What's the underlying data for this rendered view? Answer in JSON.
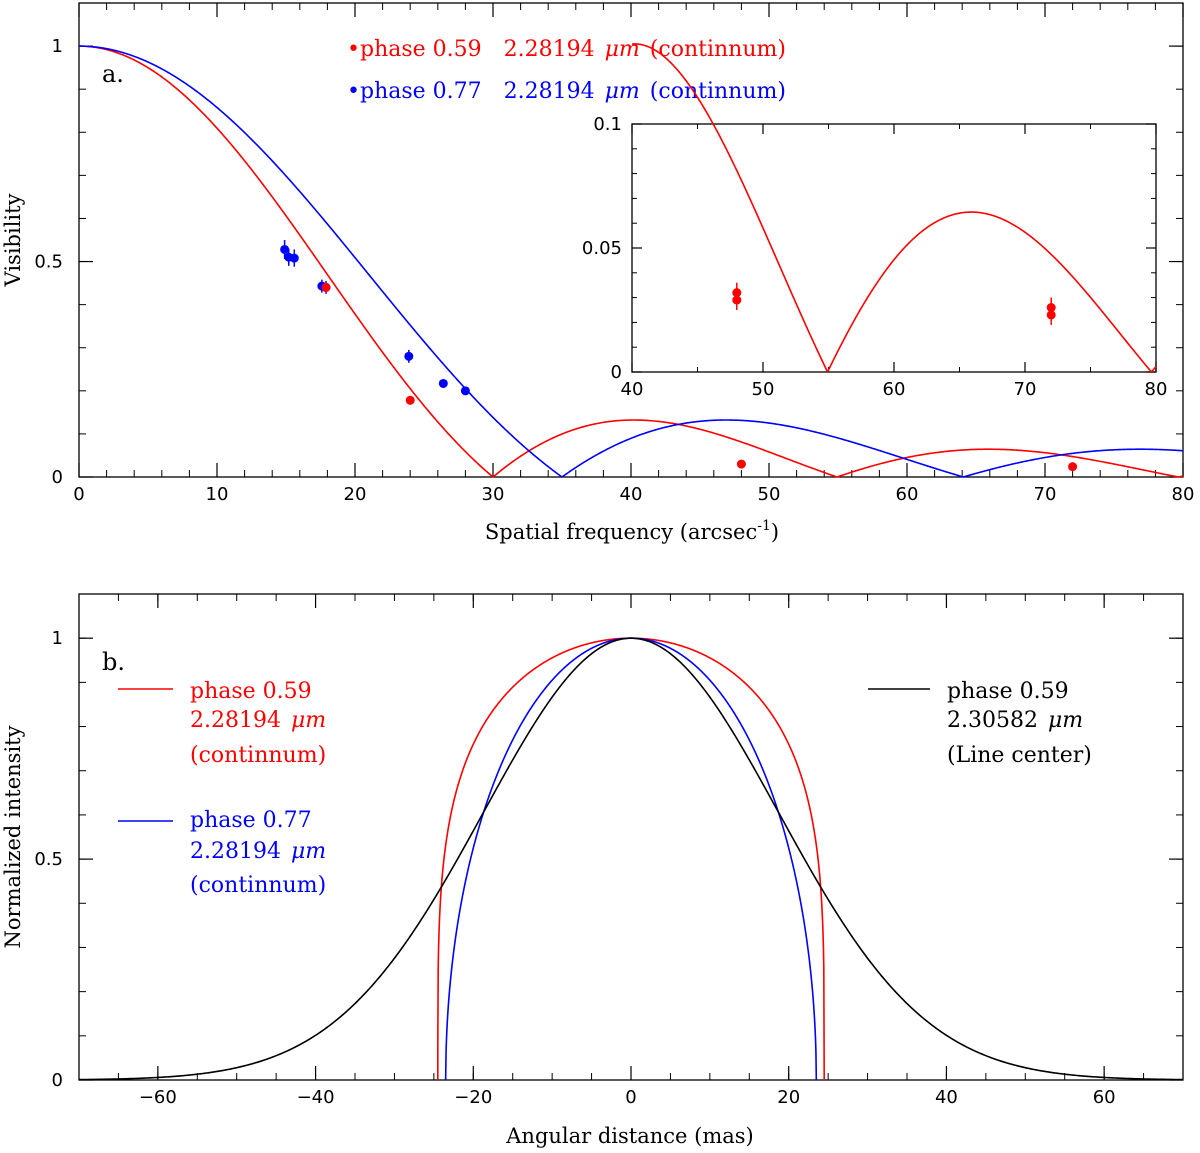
{
  "chart_data": [
    {
      "id": "a",
      "type": "line",
      "panel_label": "a.",
      "xlabel": "Spatial frequency (arcsec",
      "xlabel_sup": "-1",
      "xlabel_close": ")",
      "ylabel": "Visibility",
      "xlim": [
        0,
        80
      ],
      "ylim": [
        0,
        1.1
      ],
      "xticks": [
        0,
        10,
        20,
        30,
        40,
        50,
        60,
        70,
        80
      ],
      "xtick_labels": [
        "0",
        "10",
        "20",
        "30",
        "40",
        "50",
        "60",
        "70",
        "80"
      ],
      "yticks": [
        0,
        0.5,
        1
      ],
      "ytick_labels": [
        "0",
        "0.5",
        "1"
      ],
      "legend": [
        {
          "bullet": "•",
          "phase": "phase 0.59",
          "wavelength": "2.28194",
          "unit": "μm",
          "note": "(continnum)",
          "color": "#ff0000"
        },
        {
          "bullet": "•",
          "phase": "phase 0.77",
          "wavelength": "2.28194",
          "unit": "μm",
          "note": "(continnum)",
          "color": "#0000ff"
        }
      ],
      "series": [
        {
          "name": "phase 0.59 2.28194 μm (continnum)",
          "color": "#ff0000",
          "model": "uniform disk visibility |2J1(πθu)/(πθu)|",
          "first_null": 30
        },
        {
          "name": "phase 0.77 2.28194 μm (continnum)",
          "color": "#0000ff",
          "model": "uniform disk visibility |2J1(πθu)/(πθu)|",
          "first_null": 35
        }
      ],
      "points": [
        {
          "series": "phase 0.77",
          "color": "#0000ff",
          "x": 14.9,
          "y": 0.528,
          "err": 0.022
        },
        {
          "series": "phase 0.77",
          "color": "#0000ff",
          "x": 15.2,
          "y": 0.51,
          "err": 0.02
        },
        {
          "series": "phase 0.77",
          "color": "#0000ff",
          "x": 15.6,
          "y": 0.508,
          "err": 0.02
        },
        {
          "series": "phase 0.77",
          "color": "#0000ff",
          "x": 17.6,
          "y": 0.443,
          "err": 0.015
        },
        {
          "series": "phase 0.77",
          "color": "#0000ff",
          "x": 17.9,
          "y": 0.44,
          "err": 0.015
        },
        {
          "series": "phase 0.77",
          "color": "#0000ff",
          "x": 23.9,
          "y": 0.28,
          "err": 0.015
        },
        {
          "series": "phase 0.77",
          "color": "#0000ff",
          "x": 26.4,
          "y": 0.217,
          "err": 0.01
        },
        {
          "series": "phase 0.77",
          "color": "#0000ff",
          "x": 28.0,
          "y": 0.2,
          "err": 0.006
        },
        {
          "series": "phase 0.59",
          "color": "#ff0000",
          "x": 17.9,
          "y": 0.44,
          "err": 0.012
        },
        {
          "series": "phase 0.59",
          "color": "#ff0000",
          "x": 24.0,
          "y": 0.178,
          "err": 0.01
        },
        {
          "series": "phase 0.59",
          "color": "#ff0000",
          "x": 48.0,
          "y": 0.03,
          "err": 0.004
        },
        {
          "series": "phase 0.59",
          "color": "#ff0000",
          "x": 72.0,
          "y": 0.024,
          "err": 0.004
        }
      ]
    },
    {
      "id": "a-inset",
      "type": "line",
      "xlim": [
        40,
        80
      ],
      "ylim": [
        0,
        0.1
      ],
      "xticks": [
        40,
        50,
        60,
        70,
        80
      ],
      "xtick_labels": [
        "40",
        "50",
        "60",
        "70",
        "80"
      ],
      "yticks": [
        0,
        0.05,
        0.1
      ],
      "ytick_labels": [
        "0",
        "0.05",
        "0.1"
      ],
      "series": [
        {
          "name": "phase 0.59 2.28194 μm (continnum)",
          "color": "#ff0000"
        }
      ],
      "points": [
        {
          "color": "#ff0000",
          "x": 48.0,
          "y": 0.032,
          "err": 0.004
        },
        {
          "color": "#ff0000",
          "x": 48.0,
          "y": 0.029,
          "err": 0.004
        },
        {
          "color": "#ff0000",
          "x": 72.0,
          "y": 0.026,
          "err": 0.004
        },
        {
          "color": "#ff0000",
          "x": 72.0,
          "y": 0.023,
          "err": 0.004
        }
      ]
    },
    {
      "id": "b",
      "type": "line",
      "panel_label": "b.",
      "xlabel": "Angular distance (mas)",
      "ylabel": "Normalized intensity",
      "xlim": [
        -70,
        70
      ],
      "ylim": [
        0,
        1.1
      ],
      "xticks": [
        -60,
        -40,
        -20,
        0,
        20,
        40,
        60
      ],
      "xtick_labels": [
        "−60",
        "−40",
        "−20",
        "0",
        "20",
        "40",
        "60"
      ],
      "yticks": [
        0,
        0.5,
        1
      ],
      "ytick_labels": [
        "0",
        "0.5",
        "1"
      ],
      "legend": [
        {
          "line1": "phase 0.59",
          "wavelength": "2.28194",
          "unit": "μm",
          "line3": "(continnum)",
          "color": "#ff0000"
        },
        {
          "line1": "phase 0.77",
          "wavelength": "2.28194",
          "unit": "μm",
          "line3": "(continnum)",
          "color": "#0000ff"
        },
        {
          "line1": "phase 0.59",
          "wavelength": "2.30582",
          "unit": "μm",
          "line3": "(Line center)",
          "color": "#000000"
        }
      ],
      "series": [
        {
          "name": "phase 0.59 2.28194 μm (continnum)",
          "color": "#ff0000",
          "profile": "limb-darkened disk",
          "edge": 24.5
        },
        {
          "name": "phase 0.77 2.28194 μm (continnum)",
          "color": "#0000ff",
          "profile": "limb-darkened disk",
          "edge": 23.5
        },
        {
          "name": "phase 0.59 2.30582 μm (Line center)",
          "color": "#000000",
          "profile": "gaussian",
          "fwhm": 44
        }
      ]
    }
  ]
}
